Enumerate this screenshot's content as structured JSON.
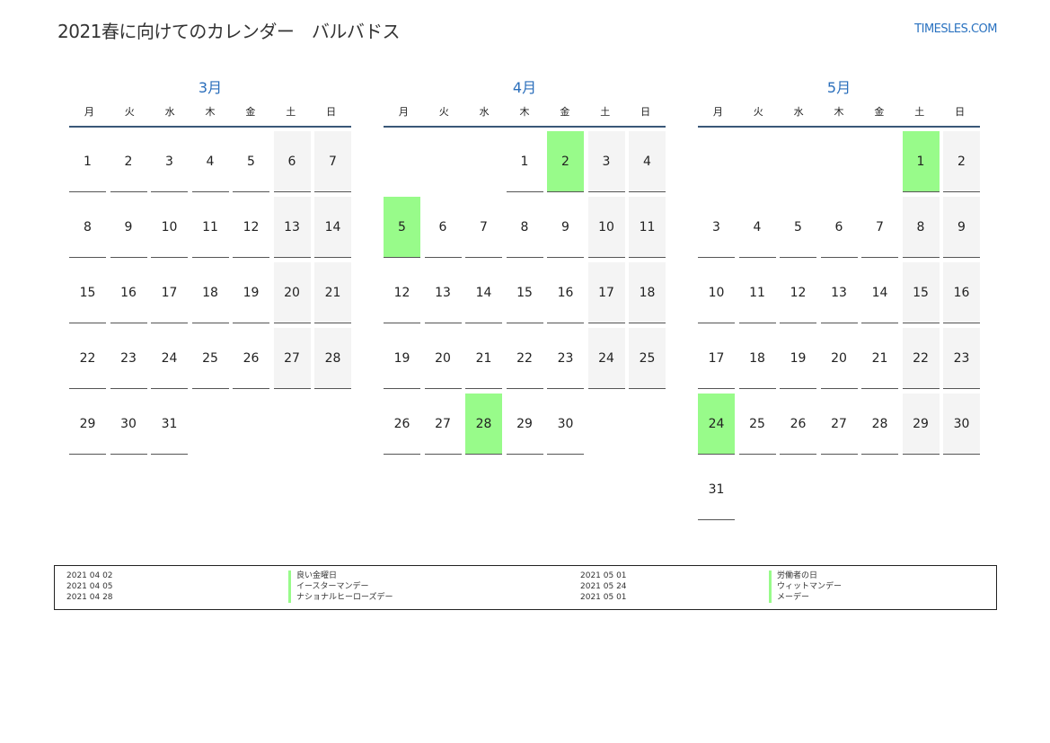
{
  "header": {
    "title": "2021春に向けてのカレンダー　バルバドス",
    "logo": "TIMESLES.COM"
  },
  "weekdays": [
    "月",
    "火",
    "水",
    "木",
    "金",
    "土",
    "日"
  ],
  "colors": {
    "accent": "#2a6ebb",
    "holiday": "#98fb8a",
    "weekend": "#f4f4f4"
  },
  "months": [
    {
      "name": "3月",
      "first_weekday_index": 0,
      "days": 31,
      "holidays": []
    },
    {
      "name": "4月",
      "first_weekday_index": 3,
      "days": 30,
      "holidays": [
        2,
        5,
        28
      ]
    },
    {
      "name": "5月",
      "first_weekday_index": 5,
      "days": 31,
      "holidays": [
        1,
        24
      ]
    }
  ],
  "legend": [
    {
      "date": "2021 04 02",
      "name": "良い金曜日"
    },
    {
      "date": "2021 04 05",
      "name": "イースターマンデー"
    },
    {
      "date": "2021 04 28",
      "name": "ナショナルヒーローズデー"
    },
    {
      "date": "2021 05 01",
      "name": "労働者の日"
    },
    {
      "date": "2021 05 24",
      "name": "ウィットマンデー"
    },
    {
      "date": "2021 05 01",
      "name": "メーデー"
    }
  ]
}
